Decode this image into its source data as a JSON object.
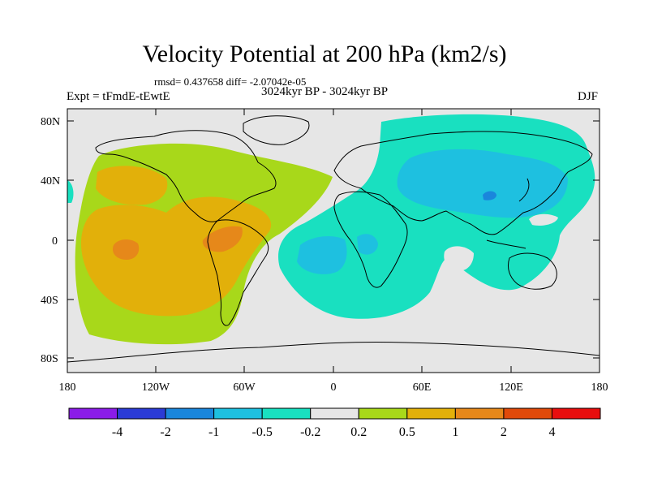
{
  "title": "Velocity Potential at 200 hPa (km2/s)",
  "stats_line": "rmsd= 0.437658 diff= -2.07042e-05",
  "period": "3024kyr BP - 3024kyr BP",
  "experiment": "Expt = tFmdE-tEwtE",
  "season": "DJF",
  "lat_ticks": [
    "80N",
    "40N",
    "0",
    "40S",
    "80S"
  ],
  "lon_ticks": [
    "180",
    "120W",
    "60W",
    "0",
    "60E",
    "120E",
    "180"
  ],
  "colorbar": {
    "colors": [
      "#8b1ce8",
      "#2b3bd6",
      "#1a86dc",
      "#1ec0e0",
      "#19e0c0",
      "#e6e6e6",
      "#a8d81a",
      "#e2b00a",
      "#e6881a",
      "#e04a0a",
      "#e80e0e"
    ],
    "labels": [
      "-4",
      "-2",
      "-1",
      "-0.5",
      "-0.2",
      "0.2",
      "0.5",
      "1",
      "2",
      "4"
    ]
  }
}
